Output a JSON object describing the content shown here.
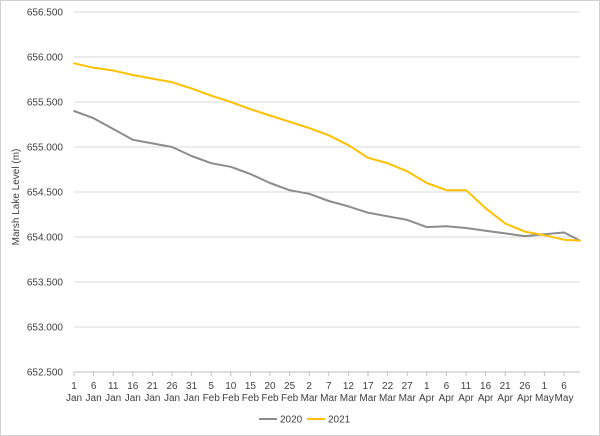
{
  "chart_data": {
    "type": "line",
    "title": "",
    "xlabel": "",
    "ylabel": "Marsh Lake Level (m)",
    "ylim": [
      652.5,
      656.5
    ],
    "yticks": [
      "652.500",
      "653.000",
      "653.500",
      "654.000",
      "654.500",
      "655.000",
      "655.500",
      "656.000",
      "656.500"
    ],
    "grid": true,
    "legend_position": "bottom",
    "x_tick_labels": [
      [
        "1",
        "Jan"
      ],
      [
        "6",
        "Jan"
      ],
      [
        "11",
        "Jan"
      ],
      [
        "16",
        "Jan"
      ],
      [
        "21",
        "Jan"
      ],
      [
        "26",
        "Jan"
      ],
      [
        "31",
        "Jan"
      ],
      [
        "5",
        "Feb"
      ],
      [
        "10",
        "Feb"
      ],
      [
        "15",
        "Feb"
      ],
      [
        "20",
        "Feb"
      ],
      [
        "25",
        "Feb"
      ],
      [
        "2",
        "Mar"
      ],
      [
        "7",
        "Mar"
      ],
      [
        "12",
        "Mar"
      ],
      [
        "17",
        "Mar"
      ],
      [
        "22",
        "Mar"
      ],
      [
        "27",
        "Mar"
      ],
      [
        "1",
        "Apr"
      ],
      [
        "6",
        "Apr"
      ],
      [
        "11",
        "Apr"
      ],
      [
        "16",
        "Apr"
      ],
      [
        "21",
        "Apr"
      ],
      [
        "26",
        "Apr"
      ],
      [
        "1",
        "May"
      ],
      [
        "6",
        "May"
      ]
    ],
    "x": [
      "Jan 1",
      "Jan 6",
      "Jan 11",
      "Jan 16",
      "Jan 21",
      "Jan 26",
      "Jan 31",
      "Feb 5",
      "Feb 10",
      "Feb 15",
      "Feb 20",
      "Feb 25",
      "Mar 2",
      "Mar 7",
      "Mar 12",
      "Mar 17",
      "Mar 22",
      "Mar 27",
      "Apr 1",
      "Apr 6",
      "Apr 11",
      "Apr 16",
      "Apr 21",
      "Apr 26",
      "May 1",
      "May 6",
      "May 9"
    ],
    "series": [
      {
        "name": "2020",
        "color": "#8c8c8c",
        "values": [
          655.4,
          655.32,
          655.2,
          655.08,
          655.04,
          655.0,
          654.9,
          654.82,
          654.78,
          654.7,
          654.6,
          654.52,
          654.48,
          654.4,
          654.34,
          654.27,
          654.23,
          654.19,
          654.11,
          654.12,
          654.1,
          654.07,
          654.04,
          654.01,
          654.03,
          654.05,
          653.96
        ]
      },
      {
        "name": "2021",
        "color": "#ffc000",
        "values": [
          655.93,
          655.88,
          655.85,
          655.8,
          655.76,
          655.72,
          655.65,
          655.57,
          655.5,
          655.42,
          655.35,
          655.28,
          655.21,
          655.13,
          655.02,
          654.88,
          654.82,
          654.73,
          654.6,
          654.52,
          654.52,
          654.32,
          654.15,
          654.06,
          654.02,
          653.97,
          653.96
        ]
      }
    ]
  }
}
